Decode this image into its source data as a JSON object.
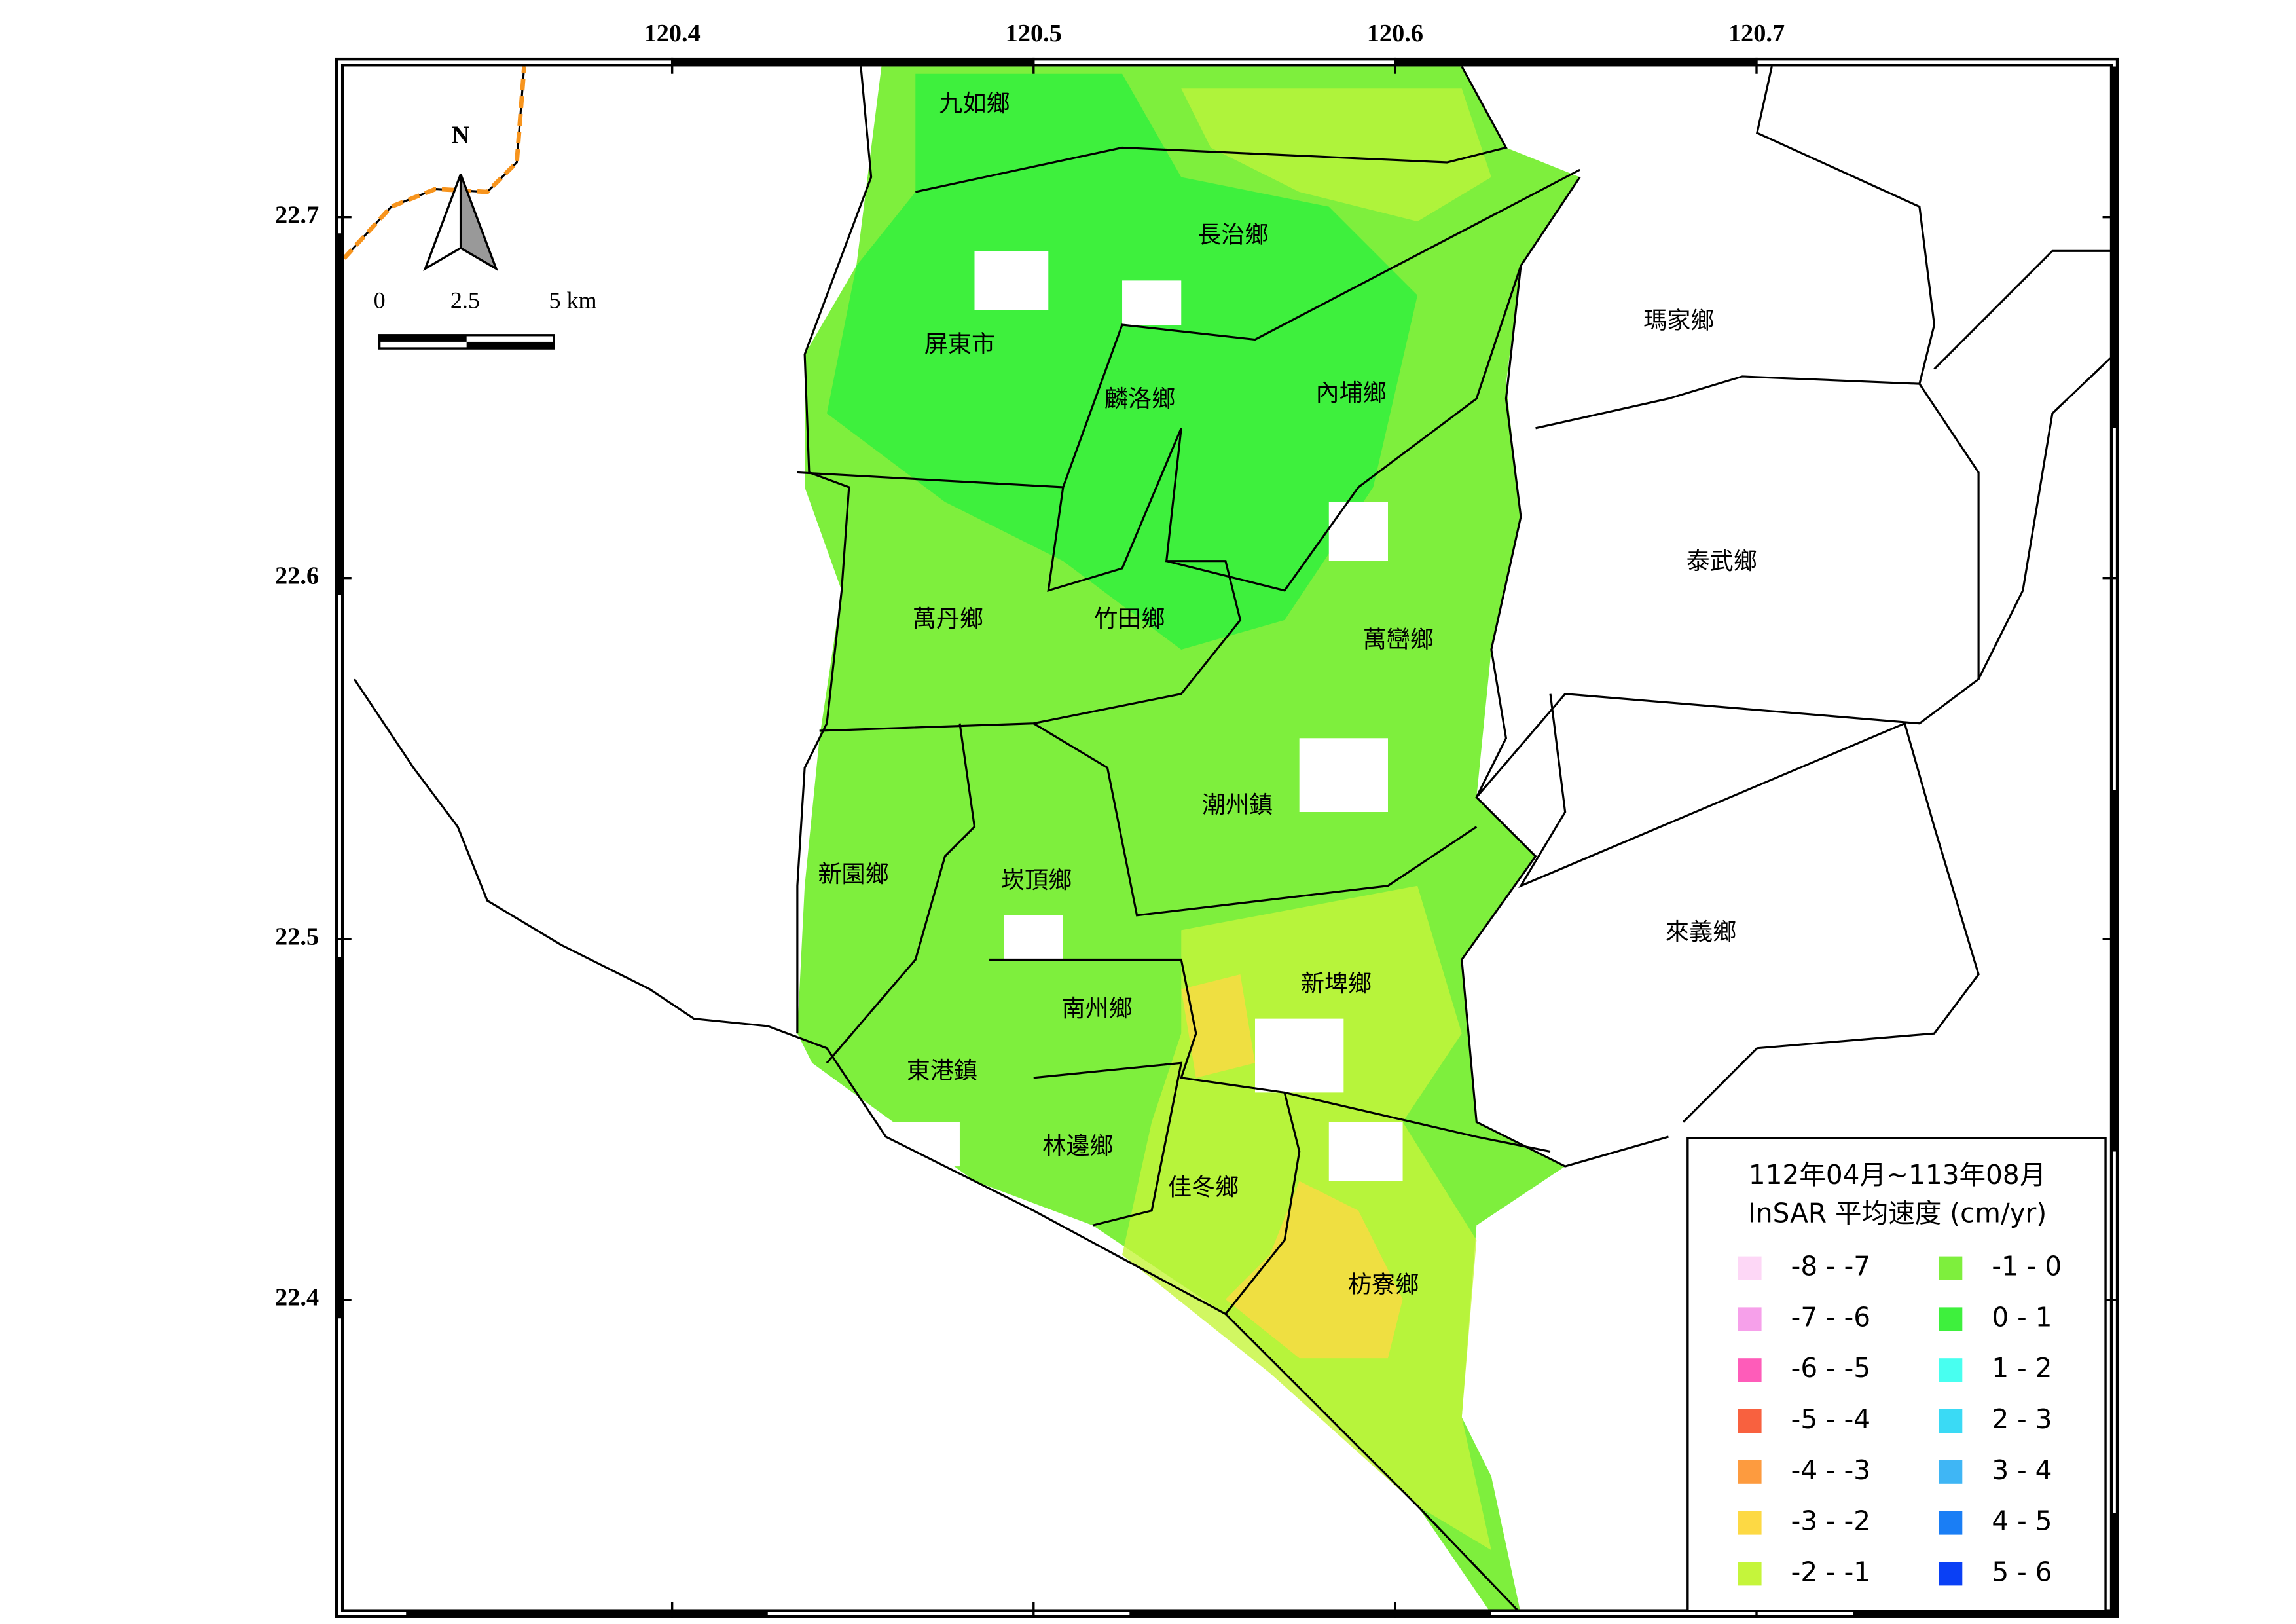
{
  "map": {
    "lonlim": [
      120.308,
      120.799
    ],
    "latlim": [
      22.743,
      22.313
    ],
    "lon_ticks": [
      120.4,
      120.5,
      120.6,
      120.7
    ],
    "lat_ticks": [
      22.7,
      22.6,
      22.5,
      22.4
    ],
    "north": "N",
    "scale_labels": [
      "0",
      "2.5",
      "5 km"
    ],
    "towns": [
      "九如鄉",
      "長治鄉",
      "屏東市",
      "麟洛鄉",
      "內埔鄉",
      "瑪家鄉",
      "泰武鄉",
      "萬丹鄉",
      "竹田鄉",
      "萬巒鄉",
      "潮州鎮",
      "新園鄉",
      "崁頂鄉",
      "來義鄉",
      "新埤鄉",
      "南州鄉",
      "東港鎮",
      "林邊鄉",
      "佳冬鄉",
      "枋寮鄉"
    ]
  },
  "legend": {
    "title": [
      "112年04月~113年08月",
      "InSAR 平均速度 (cm/yr)"
    ],
    "items": [
      {
        "label": "-8 - -7",
        "color": "#fdd7f6"
      },
      {
        "label": "-7 - -6",
        "color": "#f6a0ea"
      },
      {
        "label": "-6 - -5",
        "color": "#fe5cb9"
      },
      {
        "label": "-5 - -4",
        "color": "#f8613f"
      },
      {
        "label": "-4 - -3",
        "color": "#fd9b3f"
      },
      {
        "label": "-3 - -2",
        "color": "#fdd944"
      },
      {
        "label": "-2 - -1",
        "color": "#c5f53b"
      },
      {
        "label": "-1 - 0",
        "color": "#7eef3d"
      },
      {
        "label": "0 - 1",
        "color": "#3ef03d"
      },
      {
        "label": "1 - 2",
        "color": "#48fff0"
      },
      {
        "label": "2 - 3",
        "color": "#3adaf5"
      },
      {
        "label": "3 - 4",
        "color": "#3fb6f5"
      },
      {
        "label": "4 - 5",
        "color": "#1a7ef5"
      },
      {
        "label": "5 - 6",
        "color": "#0a40f5"
      }
    ]
  }
}
